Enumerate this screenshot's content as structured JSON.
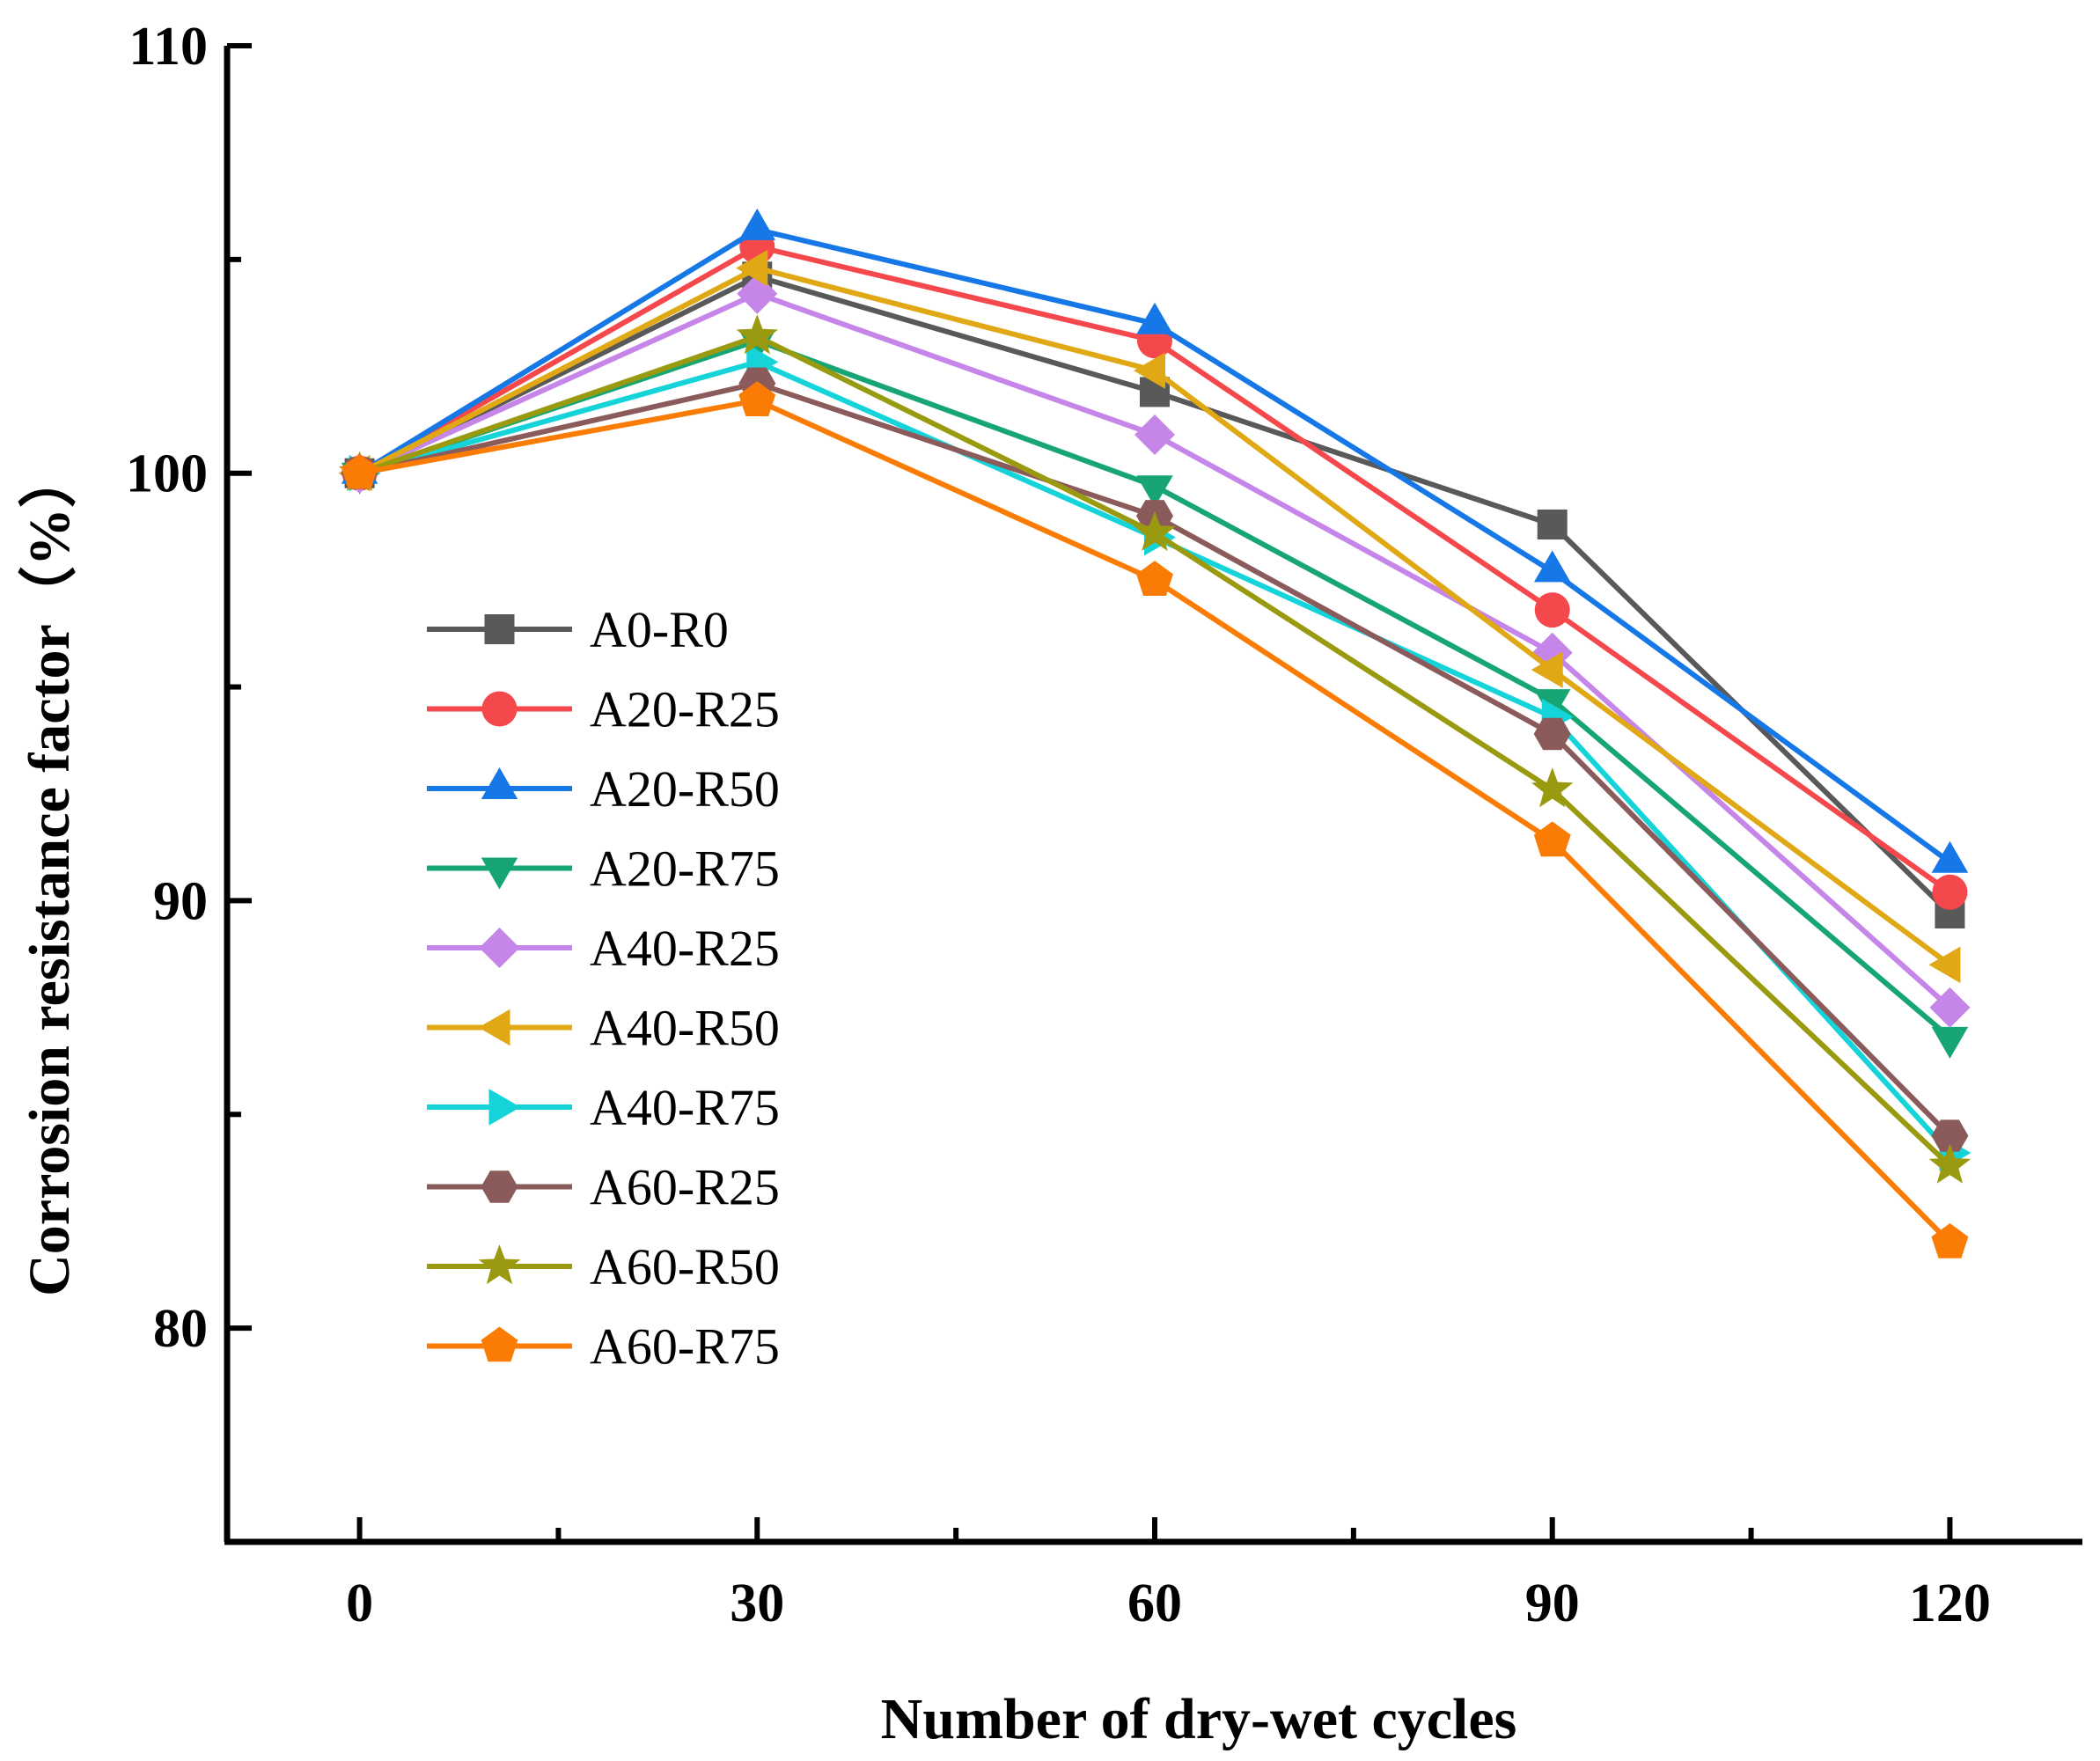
{
  "chart_data": {
    "type": "line",
    "x": [
      0,
      30,
      60,
      90,
      120
    ],
    "xlabel": "Number of dry-wet cycles",
    "ylabel": "Corrosion resistance factor（%）",
    "xlim": [
      -10,
      130
    ],
    "ylim": [
      75,
      110
    ],
    "xticks": [
      0,
      30,
      60,
      90,
      120
    ],
    "yticks": [
      80,
      90,
      100,
      110
    ],
    "legend_position": "center-left",
    "grid": false,
    "series": [
      {
        "name": "A0-R0",
        "color": "#595959",
        "marker": "square",
        "values": [
          100,
          104.6,
          101.9,
          98.8,
          89.7
        ]
      },
      {
        "name": "A20-R25",
        "color": "#f5484c",
        "marker": "circle",
        "values": [
          100,
          105.3,
          103.1,
          96.8,
          90.2
        ]
      },
      {
        "name": "A20-R50",
        "color": "#1678e6",
        "marker": "triangle-up",
        "values": [
          100,
          105.7,
          103.5,
          97.7,
          90.9
        ]
      },
      {
        "name": "A20-R75",
        "color": "#17a673",
        "marker": "triangle-down",
        "values": [
          100,
          103.1,
          99.7,
          94.7,
          86.8
        ]
      },
      {
        "name": "A40-R25",
        "color": "#c685e8",
        "marker": "diamond",
        "values": [
          100,
          104.2,
          100.9,
          95.8,
          87.5
        ]
      },
      {
        "name": "A40-R50",
        "color": "#e0a814",
        "marker": "triangle-left",
        "values": [
          100,
          104.8,
          102.4,
          95.4,
          88.5
        ]
      },
      {
        "name": "A40-R75",
        "color": "#14d3d9",
        "marker": "triangle-right",
        "values": [
          100,
          102.6,
          98.5,
          94.3,
          84.1
        ]
      },
      {
        "name": "A60-R25",
        "color": "#8b5a5a",
        "marker": "hexagon",
        "values": [
          100,
          102.1,
          99.0,
          93.9,
          84.5
        ]
      },
      {
        "name": "A60-R50",
        "color": "#9a9a10",
        "marker": "star",
        "values": [
          100,
          103.2,
          98.6,
          92.6,
          83.8
        ]
      },
      {
        "name": "A60-R75",
        "color": "#fb7c05",
        "marker": "pentagon",
        "values": [
          100,
          101.7,
          97.5,
          91.4,
          82.0
        ]
      }
    ]
  }
}
